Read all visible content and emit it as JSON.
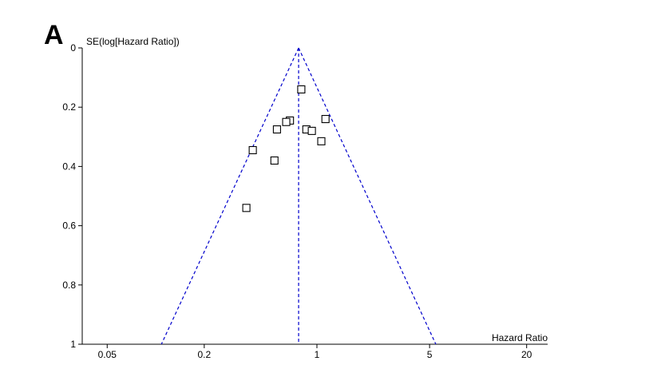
{
  "panel_label": "A",
  "chart_data": {
    "type": "scatter",
    "subtype": "funnel-plot",
    "title": "",
    "xlabel": "Hazard Ratio",
    "ylabel": "SE(log[Hazard Ratio])",
    "x_scale": "log",
    "xlim": [
      0.035,
      27
    ],
    "ylim": [
      0,
      1
    ],
    "y_inverted": true,
    "x_ticks": [
      0.05,
      0.2,
      1,
      5,
      20
    ],
    "x_tick_labels": [
      "0.05",
      "0.2",
      "1",
      "5",
      "20"
    ],
    "y_ticks": [
      0,
      0.2,
      0.4,
      0.6,
      0.8,
      1
    ],
    "y_tick_labels": [
      "0",
      "0.2",
      "0.4",
      "0.6",
      "0.8",
      "1"
    ],
    "grid": false,
    "pooled_estimate": 0.77,
    "funnel_line_color": "#0000cc",
    "marker": "square",
    "points": [
      {
        "x": 0.8,
        "y": 0.14
      },
      {
        "x": 1.13,
        "y": 0.24
      },
      {
        "x": 0.68,
        "y": 0.245
      },
      {
        "x": 0.645,
        "y": 0.25
      },
      {
        "x": 0.565,
        "y": 0.275
      },
      {
        "x": 0.86,
        "y": 0.275
      },
      {
        "x": 0.93,
        "y": 0.28
      },
      {
        "x": 1.065,
        "y": 0.315
      },
      {
        "x": 0.4,
        "y": 0.345
      },
      {
        "x": 0.545,
        "y": 0.38
      },
      {
        "x": 0.365,
        "y": 0.54
      }
    ]
  }
}
